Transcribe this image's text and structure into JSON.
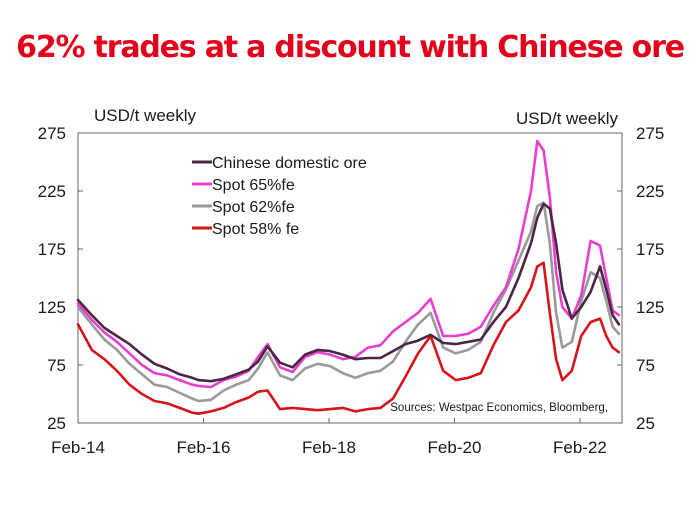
{
  "chart_data": {
    "type": "line",
    "title": "62% trades at a discount with Chinese ore",
    "ylabel_left": "USD/t weekly",
    "ylabel_right": "USD/t weekly",
    "ylim": [
      25,
      275
    ],
    "yticks": [
      25,
      75,
      125,
      175,
      225,
      275
    ],
    "ytick_labels": [
      "25",
      "75",
      "125",
      "175",
      "225",
      "275"
    ],
    "xlim": [
      2014.08,
      2022.75
    ],
    "xticks": [
      2014.08,
      2016.08,
      2018.08,
      2020.08,
      2022.08
    ],
    "xtick_labels": [
      "Feb-14",
      "Feb-16",
      "Feb-18",
      "Feb-20",
      "Feb-22"
    ],
    "legend_position": "top-left, inside plot",
    "source": "Sources: Westpac Economics, Bloomberg,",
    "series": [
      {
        "name": "Chinese domestic ore",
        "color": "#4a2545",
        "x": [
          2014.08,
          2014.3,
          2014.5,
          2014.7,
          2014.9,
          2015.1,
          2015.3,
          2015.5,
          2015.7,
          2015.9,
          2016.0,
          2016.2,
          2016.4,
          2016.6,
          2016.8,
          2016.95,
          2017.1,
          2017.3,
          2017.5,
          2017.7,
          2017.9,
          2018.1,
          2018.3,
          2018.5,
          2018.7,
          2018.9,
          2019.1,
          2019.3,
          2019.5,
          2019.7,
          2019.9,
          2020.1,
          2020.3,
          2020.5,
          2020.7,
          2020.9,
          2021.1,
          2021.3,
          2021.4,
          2021.5,
          2021.6,
          2021.7,
          2021.8,
          2021.95,
          2022.1,
          2022.25,
          2022.4,
          2022.5,
          2022.6,
          2022.7
        ],
        "values": [
          131,
          118,
          107,
          100,
          93,
          84,
          76,
          72,
          67,
          64,
          62,
          61,
          63,
          67,
          71,
          78,
          91,
          77,
          73,
          84,
          88,
          87,
          84,
          80,
          81,
          81,
          87,
          93,
          96,
          101,
          94,
          93,
          95,
          97,
          112,
          125,
          150,
          180,
          202,
          214,
          210,
          180,
          140,
          115,
          125,
          138,
          160,
          140,
          118,
          110
        ]
      },
      {
        "name": "Spot 65%fe",
        "color": "#e83fce",
        "x": [
          2014.08,
          2014.3,
          2014.5,
          2014.7,
          2014.9,
          2015.1,
          2015.3,
          2015.5,
          2015.7,
          2015.9,
          2016.0,
          2016.2,
          2016.4,
          2016.6,
          2016.8,
          2016.95,
          2017.1,
          2017.3,
          2017.5,
          2017.7,
          2017.9,
          2018.1,
          2018.3,
          2018.5,
          2018.7,
          2018.9,
          2019.1,
          2019.3,
          2019.5,
          2019.7,
          2019.9,
          2020.1,
          2020.3,
          2020.5,
          2020.7,
          2020.9,
          2021.1,
          2021.3,
          2021.4,
          2021.5,
          2021.6,
          2021.7,
          2021.8,
          2021.95,
          2022.1,
          2022.25,
          2022.4,
          2022.5,
          2022.6,
          2022.7
        ],
        "values": [
          128,
          114,
          103,
          95,
          85,
          75,
          68,
          66,
          62,
          58,
          57,
          56,
          62,
          65,
          70,
          82,
          93,
          73,
          69,
          82,
          86,
          84,
          80,
          82,
          90,
          92,
          104,
          112,
          120,
          132,
          100,
          100,
          102,
          108,
          126,
          142,
          175,
          225,
          268,
          260,
          220,
          155,
          125,
          115,
          135,
          182,
          178,
          150,
          122,
          118
        ]
      },
      {
        "name": "Spot 62%fe",
        "color": "#9a9a9a",
        "x": [
          2014.08,
          2014.3,
          2014.5,
          2014.7,
          2014.9,
          2015.1,
          2015.3,
          2015.5,
          2015.7,
          2015.9,
          2016.0,
          2016.2,
          2016.4,
          2016.6,
          2016.8,
          2016.95,
          2017.1,
          2017.3,
          2017.5,
          2017.7,
          2017.9,
          2018.1,
          2018.3,
          2018.5,
          2018.7,
          2018.9,
          2019.1,
          2019.3,
          2019.5,
          2019.7,
          2019.9,
          2020.1,
          2020.3,
          2020.5,
          2020.7,
          2020.9,
          2021.1,
          2021.3,
          2021.4,
          2021.5,
          2021.6,
          2021.7,
          2021.8,
          2021.95,
          2022.1,
          2022.25,
          2022.4,
          2022.5,
          2022.6,
          2022.7
        ],
        "values": [
          125,
          110,
          97,
          88,
          76,
          67,
          58,
          56,
          51,
          46,
          44,
          45,
          53,
          58,
          62,
          72,
          86,
          66,
          62,
          72,
          76,
          74,
          68,
          64,
          68,
          70,
          78,
          95,
          110,
          120,
          90,
          85,
          88,
          95,
          120,
          140,
          165,
          190,
          212,
          215,
          180,
          120,
          90,
          95,
          130,
          155,
          150,
          130,
          108,
          102
        ]
      },
      {
        "name": "Spot 58% fe",
        "color": "#d6141a",
        "x": [
          2014.08,
          2014.3,
          2014.5,
          2014.7,
          2014.9,
          2015.1,
          2015.3,
          2015.5,
          2015.7,
          2015.9,
          2016.0,
          2016.2,
          2016.4,
          2016.6,
          2016.8,
          2016.95,
          2017.1,
          2017.3,
          2017.5,
          2017.7,
          2017.9,
          2018.1,
          2018.3,
          2018.5,
          2018.7,
          2018.9,
          2019.1,
          2019.3,
          2019.5,
          2019.7,
          2019.9,
          2020.1,
          2020.3,
          2020.5,
          2020.7,
          2020.9,
          2021.1,
          2021.3,
          2021.4,
          2021.5,
          2021.6,
          2021.7,
          2021.8,
          2021.95,
          2022.1,
          2022.25,
          2022.4,
          2022.5,
          2022.6,
          2022.7
        ],
        "values": [
          110,
          88,
          80,
          70,
          58,
          50,
          44,
          42,
          38,
          34,
          33,
          35,
          38,
          43,
          47,
          52,
          53,
          37,
          38,
          37,
          36,
          37,
          38,
          35,
          37,
          38,
          46,
          65,
          85,
          100,
          70,
          62,
          64,
          68,
          92,
          112,
          122,
          142,
          160,
          163,
          120,
          80,
          62,
          70,
          100,
          112,
          115,
          100,
          90,
          86
        ]
      }
    ]
  }
}
